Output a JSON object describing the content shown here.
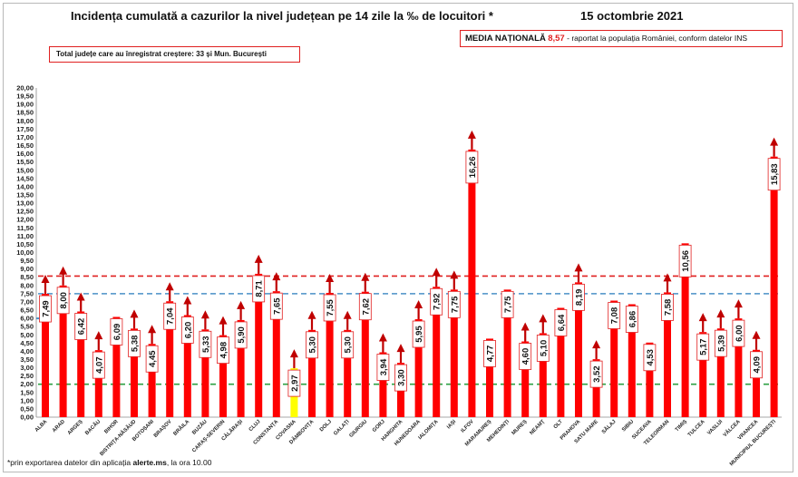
{
  "header": {
    "title": "Incidența cumulată a cazurilor la nivel județean pe 14 zile la ‰ de locuitori *",
    "date": "15 octombrie 2021"
  },
  "national_box": {
    "label": "MEDIA NAȚIONALĂ",
    "value": "8,57",
    "dash": "-",
    "note": "raportat la populația României, conform datelor INS"
  },
  "total_box": {
    "text": "Total județe care au înregistrat creștere:  33 și Mun. București"
  },
  "footnote": {
    "prefix": "*prin exportarea datelor din aplicația",
    "app": "alerte.ms",
    "suffix": ", la ora 10.00"
  },
  "colors": {
    "bar": "#ff0000",
    "bar_highlight": "#ffff00",
    "arrow": "#c00000",
    "line_national": "#e02020",
    "line_blue": "#4a90c8",
    "line_green": "#2ea043"
  },
  "chart_data": {
    "type": "bar",
    "title": "Incidența cumulată a cazurilor la nivel județean pe 14 zile la ‰ de locuitori *",
    "ylim": [
      0,
      20
    ],
    "ytick_step": 0.5,
    "grid": false,
    "categories": [
      "ALBA",
      "ARAD",
      "ARGEȘ",
      "BACĂU",
      "BIHOR",
      "BISTRIȚA-NĂSĂUD",
      "BOTOȘANI",
      "BRAȘOV",
      "BRĂILA",
      "BUZĂU",
      "CARAȘ-SEVERIN",
      "CĂLĂRAȘI",
      "CLUJ",
      "CONSTANȚA",
      "COVASNA",
      "DÂMBOVIȚA",
      "DOLJ",
      "GALAȚI",
      "GIURGIU",
      "GORJ",
      "HARGHITA",
      "HUNEDOARA",
      "IALOMIȚA",
      "IAȘI",
      "ILFOV",
      "MARAMUREȘ",
      "MEHEDINȚI",
      "MUREȘ",
      "NEAMȚ",
      "OLT",
      "PRAHOVA",
      "SATU MARE",
      "SĂLAJ",
      "SIBIU",
      "SUCEAVA",
      "TELEORMAN",
      "TIMIȘ",
      "TULCEA",
      "VASLUI",
      "VÂLCEA",
      "VRANCEA",
      "MUNICIPIUL BUCUREȘTI"
    ],
    "values": [
      7.49,
      8.0,
      6.42,
      4.07,
      6.09,
      5.38,
      4.45,
      7.04,
      6.2,
      5.33,
      4.98,
      5.9,
      8.71,
      7.65,
      2.97,
      5.3,
      7.55,
      5.3,
      7.62,
      3.94,
      3.3,
      5.95,
      7.92,
      7.75,
      16.26,
      4.77,
      7.75,
      4.6,
      5.1,
      6.64,
      8.19,
      3.52,
      7.08,
      6.86,
      4.53,
      7.58,
      10.56,
      5.17,
      5.39,
      6.0,
      4.09,
      15.83
    ],
    "labels": [
      "7,49",
      "8,00",
      "6,42",
      "4,07",
      "6,09",
      "5,38",
      "4,45",
      "7,04",
      "6,20",
      "5,33",
      "4,98",
      "5,90",
      "8,71",
      "7,65",
      "2,97",
      "5,30",
      "7,55",
      "5,30",
      "7,62",
      "3,94",
      "3,30",
      "5,95",
      "7,92",
      "7,75",
      "16,26",
      "4,77",
      "7,75",
      "4,60",
      "5,10",
      "6,64",
      "8,19",
      "3,52",
      "7,08",
      "6,86",
      "4,53",
      "7,58",
      "10,56",
      "5,17",
      "5,39",
      "6,00",
      "4,09",
      "15,83"
    ],
    "trend": [
      "up",
      "up",
      "up",
      "up",
      "none",
      "up",
      "up",
      "up",
      "up",
      "up",
      "up",
      "up",
      "up",
      "up",
      "up",
      "up",
      "up",
      "up",
      "up",
      "up",
      "up",
      "up",
      "up",
      "up",
      "up",
      "none",
      "none",
      "up",
      "up",
      "none",
      "up",
      "up",
      "none",
      "none",
      "none",
      "up",
      "none",
      "up",
      "up",
      "up",
      "up",
      "up"
    ],
    "highlight_index": 14,
    "reference_lines": [
      {
        "name": "MEDIA NAȚIONALĂ",
        "value": 8.57,
        "style": "dashed",
        "color": "#e02020"
      },
      {
        "value": 7.5,
        "style": "dashed",
        "color": "#4a90c8"
      },
      {
        "value": 2.0,
        "style": "dashed",
        "color": "#2ea043"
      }
    ],
    "blue_marker": {
      "value": 6.0
    }
  }
}
